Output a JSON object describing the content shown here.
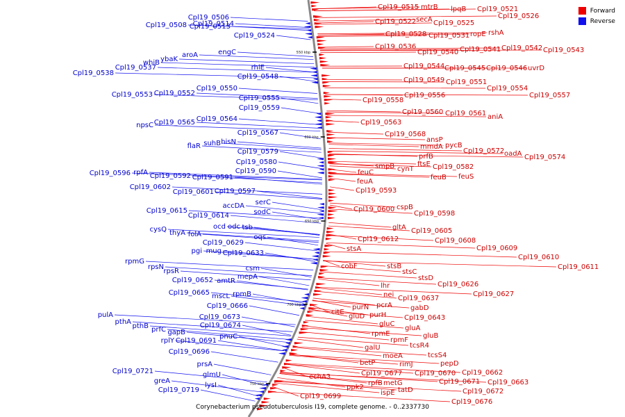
{
  "caption": "Corynebacterium pseudotuberculosis I19, complete genome. - 0..2337730",
  "legend": [
    {
      "label": "Forward",
      "color": "#ee0000"
    },
    {
      "label": "Reverse",
      "color": "#1111ee"
    }
  ],
  "colors": {
    "forward": "#ee0000",
    "reverse": "#1111ee",
    "backbone": "#888888",
    "text_forward": "#cc0000",
    "text_reverse": "#0000cc"
  },
  "ticks": [
    "550 kbp",
    "600 kbp",
    "650 kbp",
    "700 kbp",
    "750 kbp"
  ],
  "forward_labels": [
    "Cpl19_0515",
    "mtrB",
    "lpqB",
    "Cpl19_0521",
    "Cpl19_0526",
    "Cpl19_0522",
    "secA",
    "Cpl19_0525",
    "Cpl19_0528",
    "Cpl19_0531",
    "ropE",
    "rshA",
    "Cpl19_0536",
    "Cpl19_0540",
    "Cpl19_0541",
    "Cpl19_0542",
    "Cpl19_0543",
    "Cpl19_0544",
    "Cpl19_0545",
    "Cpl19_0546",
    "uvrD",
    "Cpl19_0549",
    "Cpl19_0551",
    "Cpl19_0554",
    "Cpl19_0558",
    "Cpl19_0556",
    "Cpl19_0557",
    "Cpl19_0560",
    "Cpl19_0561",
    "aniA",
    "Cpl19_0563",
    "Cpl19_0568",
    "ansP",
    "mmdA",
    "pycB",
    "Cpl19_0572",
    "oadA",
    "Cpl19_0574",
    "prfB",
    "smpB",
    "cynT",
    "ftsE",
    "Cpl19_0582",
    "feuC",
    "feuB",
    "feuS",
    "feuA",
    "Cpl19_0593",
    "cspB",
    "Cpl19_0600",
    "Cpl19_0598",
    "gltA",
    "Cpl19_0605",
    "Cpl19_0612",
    "Cpl19_0608",
    "Cpl19_0609",
    "Cpl19_0610",
    "Cpl19_0611",
    "stsA",
    "cobF",
    "stsB",
    "stsC",
    "stsD",
    "Cpl19_0626",
    "lhr",
    "Cpl19_0627",
    "nei",
    "Cpl19_0637",
    "pcrA",
    "gabD",
    "purN",
    "citE",
    "purH",
    "gluD",
    "Cpl19_0643",
    "gluC",
    "gluA",
    "gluB",
    "rpmE",
    "rpmF",
    "tcsR4",
    "tcsS4",
    "galU",
    "moeA",
    "pepD",
    "betP",
    "rimJ",
    "Cpl19_0662",
    "Cpl19_0670",
    "Cpl19_0671",
    "Cpl19_0663",
    "Cpl19_0677",
    "rpfB",
    "metG",
    "Cpl19_0672",
    "ppk2",
    "ispE",
    "tatD",
    "Cpl19_0676",
    "echA3",
    "Cpl19_0699"
  ],
  "reverse_labels": [
    "Cpl19_0506",
    "Cpl19_0514",
    "Cpl19_0508",
    "Cpl19_0513",
    "Cpl19_0524",
    "aroA",
    "engC",
    "ybaK",
    "whiB",
    "Cpl19_0537",
    "Cpl19_0538",
    "rhlE",
    "Cpl19_0548",
    "Cpl19_0550",
    "Cpl19_0553",
    "Cpl19_0552",
    "Cpl19_0555",
    "Cpl19_0559",
    "Cpl19_0564",
    "npsC",
    "Cpl19_0565",
    "Cpl19_0567",
    "hisN",
    "suhB",
    "flaR",
    "Cpl19_0579",
    "Cpl19_0580",
    "Cpl19_0590",
    "Cpl19_0596",
    "rpfA",
    "Cpl19_0592",
    "Cpl19_0591",
    "Cpl19_0602",
    "Cpl19_0601",
    "Cpl19_0597",
    "serC",
    "accDA",
    "sodC",
    "Cpl19_0615",
    "Cpl19_0614",
    "ocd",
    "odc",
    "tsb",
    "cysQ",
    "thyA",
    "folA",
    "oqs",
    "Cpl19_0629",
    "pgi",
    "mug",
    "Cpl19_0633",
    "rpmG",
    "rpsN",
    "rpsR",
    "csm",
    "mepA",
    "Cpl19_0652",
    "amtR",
    "rpmB",
    "mscL",
    "Cpl19_0665",
    "Cpl19_0666",
    "Cpl19_0673",
    "pulA",
    "pthA",
    "pthB",
    "Cpl19_0674",
    "prfC",
    "gapB",
    "rplY",
    "Cpl19_0691",
    "pnuC",
    "Cpl19_0696",
    "prsA",
    "glmU",
    "Cpl19_0721",
    "greA",
    "lysI",
    "Cpl19_0719"
  ]
}
